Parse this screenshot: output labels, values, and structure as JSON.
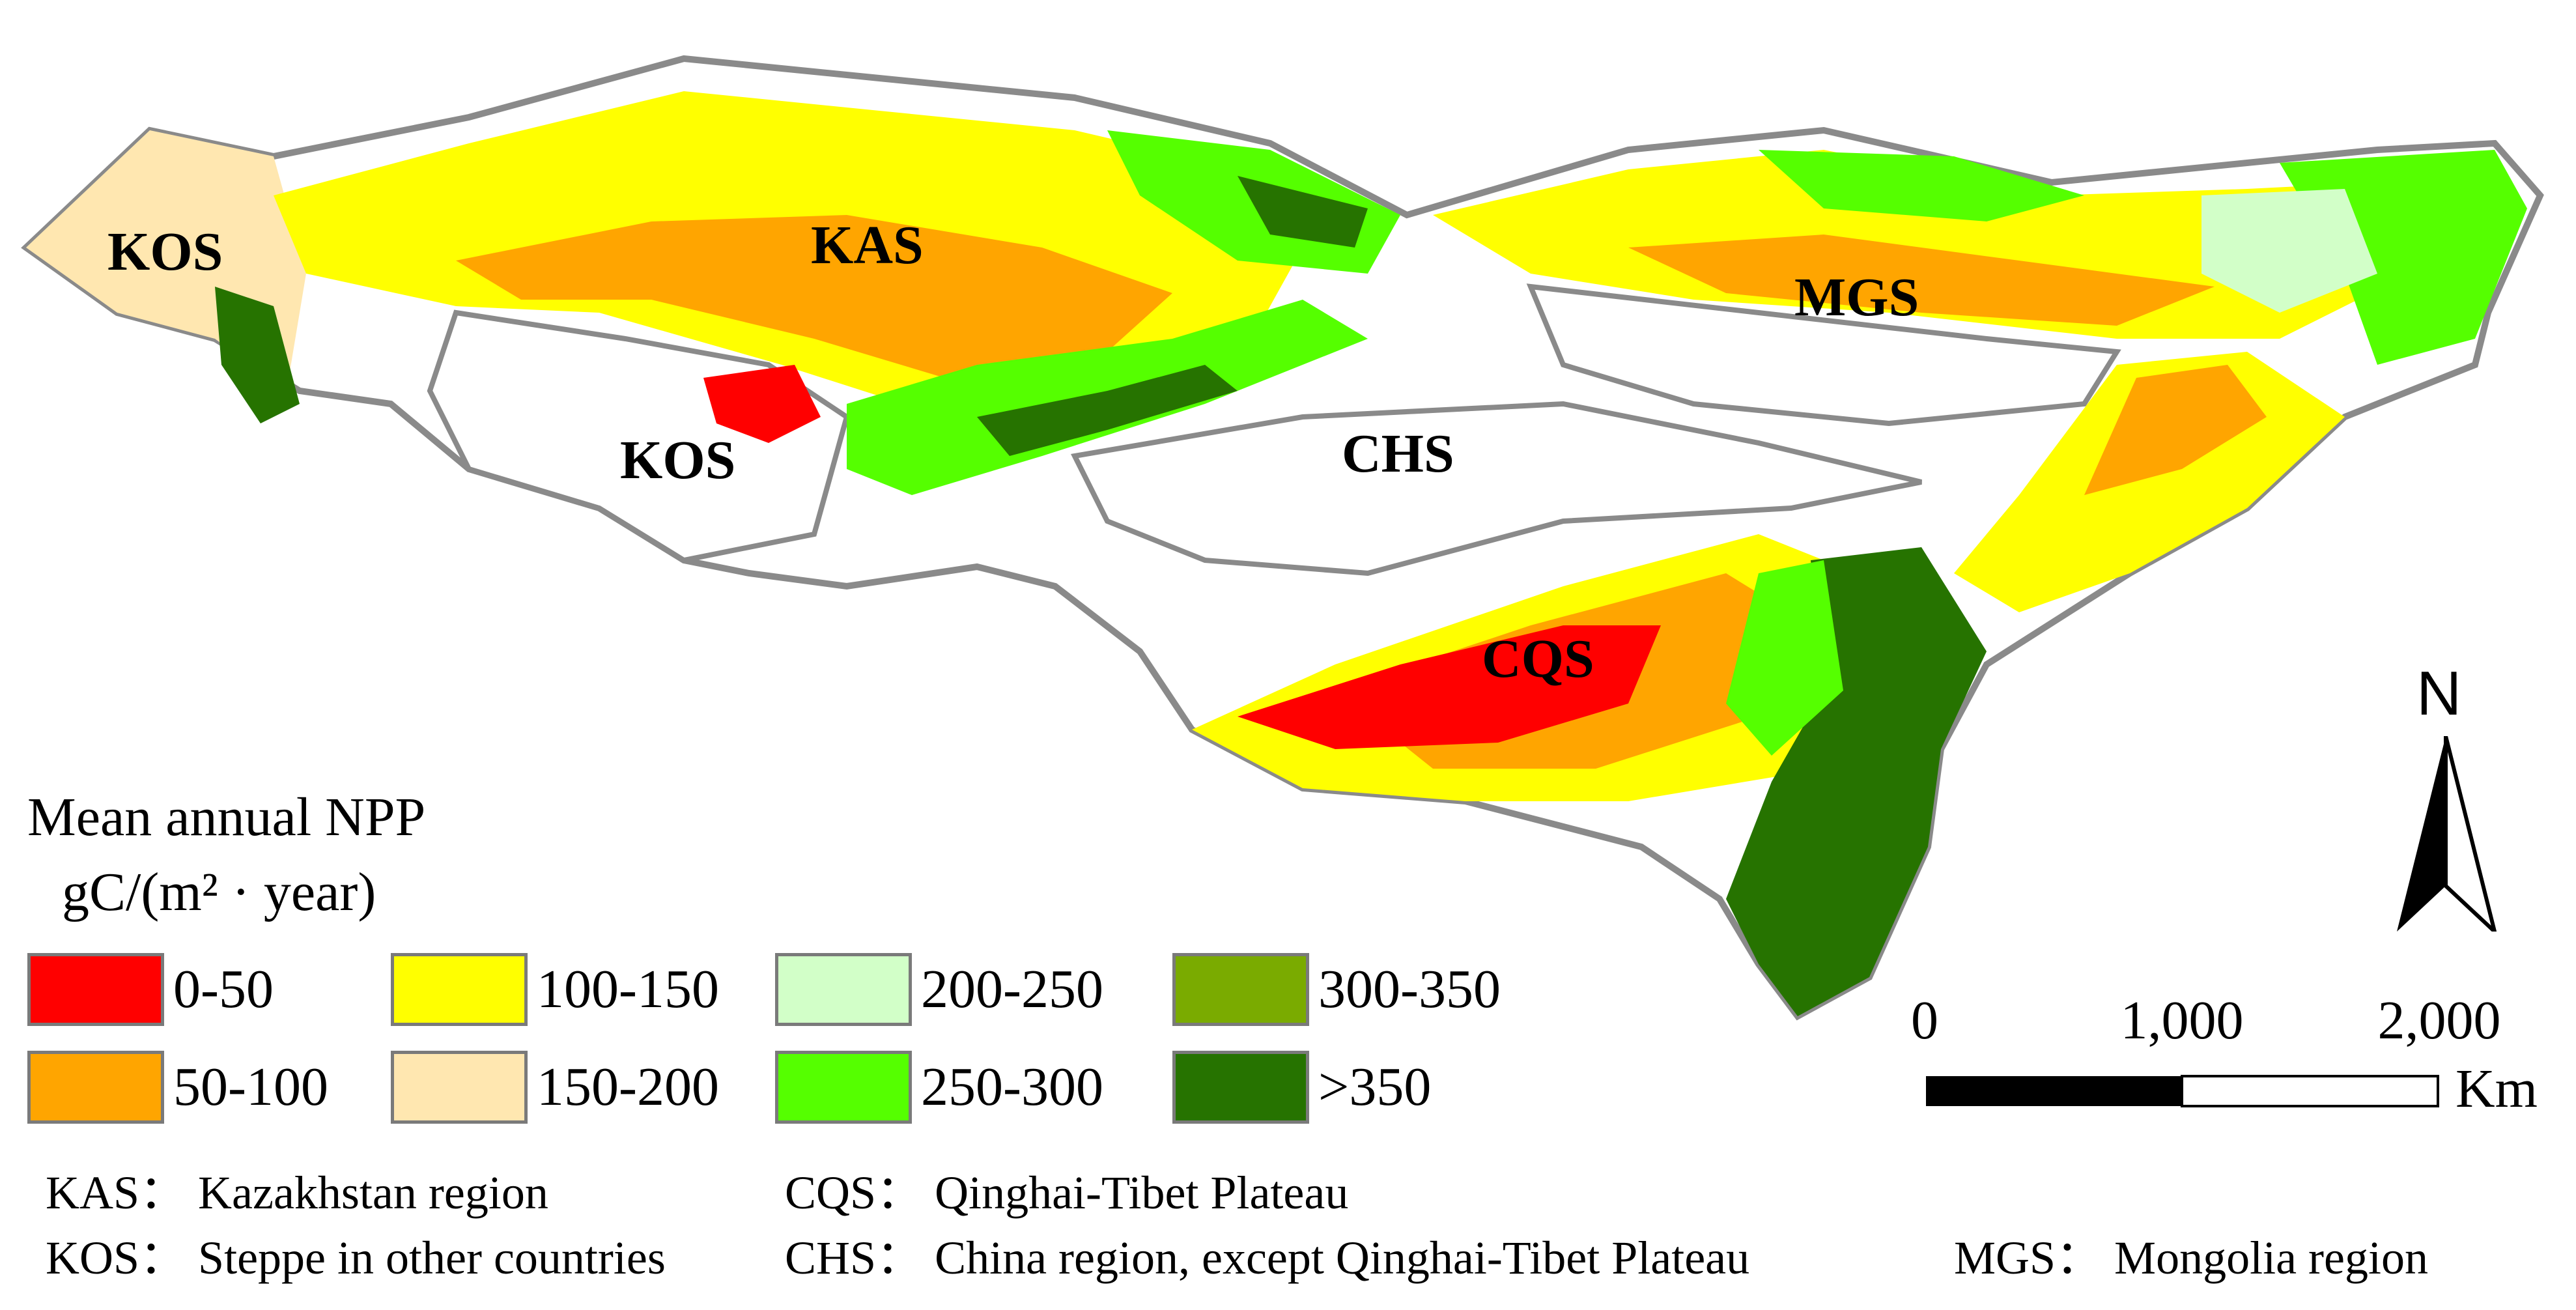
{
  "regions": {
    "kos_west": "KOS",
    "kas": "KAS",
    "kos_central": "KOS",
    "mgs": "MGS",
    "chs": "CHS",
    "cqs": "CQS"
  },
  "legend": {
    "title": "Mean annual NPP",
    "unit": "gC/(m² · year)",
    "classes": [
      {
        "label": "0-50",
        "color": "#ff0000"
      },
      {
        "label": "50-100",
        "color": "#ffa500"
      },
      {
        "label": "100-150",
        "color": "#ffff00"
      },
      {
        "label": "150-200",
        "color": "#ffe7b0"
      },
      {
        "label": "200-250",
        "color": "#d2ffc8"
      },
      {
        "label": "250-300",
        "color": "#55ff00"
      },
      {
        "label": "300-350",
        "color": "#7aab00"
      },
      {
        "label": ">350",
        "color": "#267300"
      }
    ]
  },
  "north_arrow": {
    "label": "N"
  },
  "scale_bar": {
    "ticks": [
      "0",
      "1,000",
      "2,000"
    ],
    "unit": "Km"
  },
  "abbreviations": {
    "kas": "KAS：  Kazakhstan  region",
    "cqs": "CQS：  Qinghai-Tibet Plateau",
    "kos": "KOS：  Steppe in other countries",
    "chs": "CHS：  China region, except Qinghai-Tibet Plateau",
    "mgs": "MGS：  Mongolia region"
  }
}
